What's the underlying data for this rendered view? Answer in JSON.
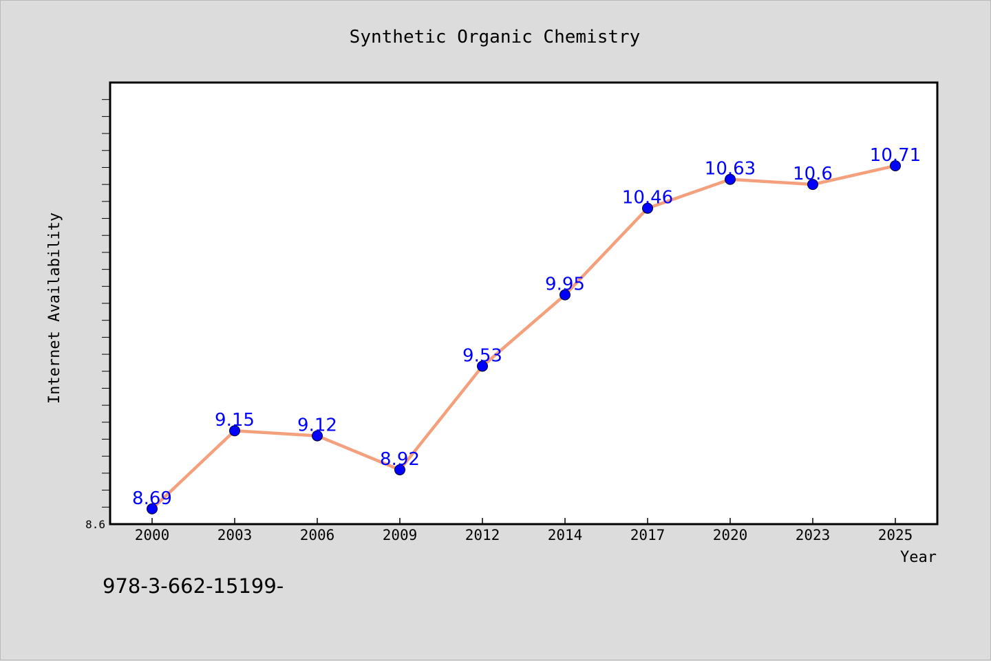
{
  "colors": {
    "background": "#dcdcdc",
    "plot_background": "#ffffff",
    "line": "#f4a07c",
    "marker": "#0000ff",
    "data_label": "#0000ff"
  },
  "footer": {
    "code": "978-3-662-15199-"
  },
  "chart_data": {
    "type": "line",
    "title": "Synthetic Organic Chemistry",
    "xlabel": "Year",
    "ylabel": "Internet Availability",
    "categories": [
      "2000",
      "2003",
      "2006",
      "2009",
      "2012",
      "2014",
      "2017",
      "2020",
      "2023",
      "2025"
    ],
    "series": [
      {
        "values": [
          8.69,
          9.15,
          9.12,
          8.92,
          9.53,
          9.95,
          10.46,
          10.63,
          10.6,
          10.71
        ]
      }
    ],
    "y_tick_labels": [
      "8.6"
    ],
    "ylim": [
      8.6,
      11.2
    ],
    "y_minor_step": 0.1,
    "grid": false,
    "legend": "none",
    "data_labels": true
  }
}
